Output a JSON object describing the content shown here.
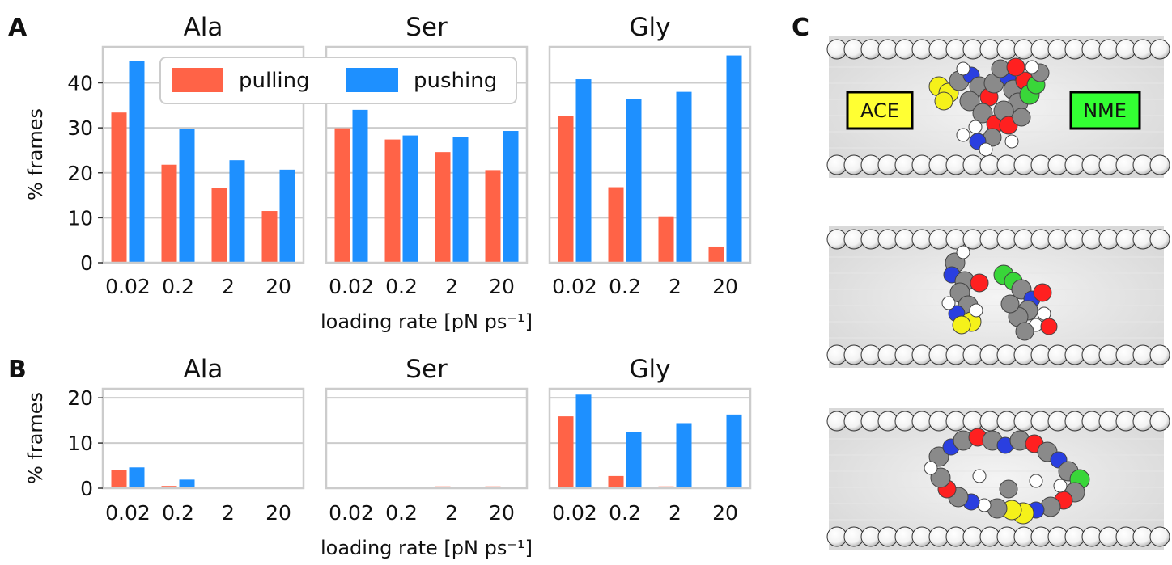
{
  "colors": {
    "pulling": "#ff6347",
    "pushing": "#1e90ff",
    "axes": "#cccccc",
    "grid": "#cccccc",
    "ace_box": "#ffff33",
    "nme_box": "#33ff33"
  },
  "panels": {
    "a": "A",
    "b": "B",
    "c": "C"
  },
  "legend": {
    "pulling": "pulling",
    "pushing": "pushing"
  },
  "tube_labels": {
    "ace": "ACE",
    "nme": "NME"
  },
  "chart_data": [
    {
      "panel": "A",
      "type": "bar",
      "ylabel": "% frames",
      "xlabel": "loading rate [pN ps⁻¹]",
      "ylim": [
        0,
        48
      ],
      "yticks": [
        0,
        10,
        20,
        30,
        40
      ],
      "categories": [
        "0.02",
        "0.2",
        "2",
        "20"
      ],
      "subplots": [
        {
          "title": "Ala",
          "series": [
            {
              "name": "pulling",
              "values": [
                33.4,
                21.8,
                16.6,
                11.5
              ]
            },
            {
              "name": "pushing",
              "values": [
                44.9,
                29.8,
                22.8,
                20.7
              ]
            }
          ]
        },
        {
          "title": "Ser",
          "series": [
            {
              "name": "pulling",
              "values": [
                29.9,
                27.4,
                24.6,
                20.6
              ]
            },
            {
              "name": "pushing",
              "values": [
                34.0,
                28.3,
                28.0,
                29.3
              ]
            }
          ]
        },
        {
          "title": "Gly",
          "series": [
            {
              "name": "pulling",
              "values": [
                32.7,
                16.8,
                10.3,
                3.6
              ]
            },
            {
              "name": "pushing",
              "values": [
                40.8,
                36.4,
                38.0,
                46.1
              ]
            }
          ]
        }
      ]
    },
    {
      "panel": "B",
      "type": "bar",
      "ylabel": "% frames",
      "xlabel": "loading rate [pN ps⁻¹]",
      "ylim": [
        0,
        22
      ],
      "yticks": [
        0,
        10,
        20
      ],
      "categories": [
        "0.02",
        "0.2",
        "2",
        "20"
      ],
      "subplots": [
        {
          "title": "Ala",
          "series": [
            {
              "name": "pulling",
              "values": [
                4.0,
                0.5,
                0.0,
                0.0
              ]
            },
            {
              "name": "pushing",
              "values": [
                4.6,
                1.9,
                0.0,
                0.0
              ]
            }
          ]
        },
        {
          "title": "Ser",
          "series": [
            {
              "name": "pulling",
              "values": [
                0.2,
                0.2,
                0.4,
                0.4
              ]
            },
            {
              "name": "pushing",
              "values": [
                0.0,
                0.0,
                0.0,
                0.0
              ]
            }
          ]
        },
        {
          "title": "Gly",
          "series": [
            {
              "name": "pulling",
              "values": [
                15.9,
                2.7,
                0.4,
                0.0
              ]
            },
            {
              "name": "pushing",
              "values": [
                20.7,
                12.4,
                14.4,
                16.3
              ]
            }
          ]
        }
      ]
    }
  ]
}
